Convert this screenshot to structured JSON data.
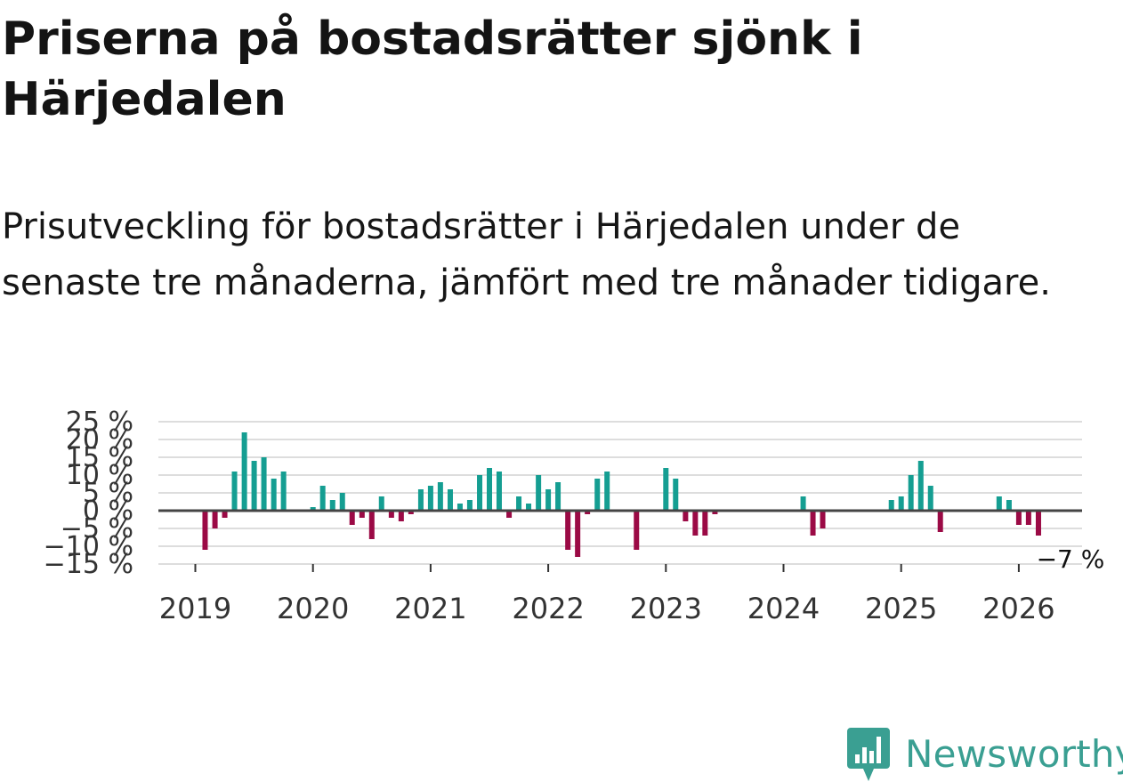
{
  "header": {
    "title": "Priserna på bostadsrätter sjönk i Härjedalen",
    "subtitle": "Prisutveckling för bostadsrätter i Härjedalen under de senaste tre månaderna, jämfört med tre månader tidigare."
  },
  "brand": {
    "name": "Newsworthy",
    "logo_icon": "newsworthy-bar-chart-icon",
    "color": "#3a9f92"
  },
  "chart_data": {
    "type": "bar",
    "title": "Priserna på bostadsrätter sjönk i Härjedalen",
    "subtitle": "Prisutveckling för bostadsrätter i Härjedalen under de senaste tre månaderna, jämfört med tre månader tidigare.",
    "xlabel": "",
    "ylabel": "",
    "unit": "%",
    "ylim": [
      -15,
      25
    ],
    "yticks": [
      -15,
      -10,
      -5,
      0,
      5,
      10,
      15,
      20,
      25
    ],
    "ytick_labels": [
      "−15 %",
      "−10 %",
      "−5 %",
      "0 %",
      "5 %",
      "10 %",
      "15 %",
      "20 %",
      "25 %"
    ],
    "xlim": [
      2019.0,
      2026.55
    ],
    "xticks": [
      2019,
      2020,
      2021,
      2022,
      2023,
      2024,
      2025,
      2026
    ],
    "xtick_labels": [
      "2019",
      "2020",
      "2021",
      "2022",
      "2023",
      "2024",
      "2025",
      "2026"
    ],
    "grid": true,
    "colors": {
      "positive": "#159e92",
      "negative": "#9b0a45",
      "zero_line": "#444444",
      "grid": "#dddddd"
    },
    "annotation": {
      "text": "−7 %",
      "x": 2026.167,
      "y": -7
    },
    "x": [
      2019.083,
      2019.167,
      2019.25,
      2019.333,
      2019.417,
      2019.5,
      2019.583,
      2019.667,
      2019.75,
      2020.0,
      2020.083,
      2020.167,
      2020.25,
      2020.333,
      2020.417,
      2020.5,
      2020.583,
      2020.667,
      2020.75,
      2020.833,
      2020.917,
      2021.0,
      2021.083,
      2021.167,
      2021.25,
      2021.333,
      2021.417,
      2021.5,
      2021.583,
      2021.667,
      2021.75,
      2021.833,
      2021.917,
      2022.0,
      2022.083,
      2022.167,
      2022.25,
      2022.333,
      2022.417,
      2022.5,
      2022.75,
      2023.0,
      2023.083,
      2023.167,
      2023.25,
      2023.333,
      2023.417,
      2024.167,
      2024.25,
      2024.333,
      2024.917,
      2025.0,
      2025.083,
      2025.167,
      2025.25,
      2025.333,
      2025.833,
      2025.917,
      2026.0,
      2026.083,
      2026.167
    ],
    "values": [
      -11,
      -5,
      -2,
      11,
      22,
      14,
      15,
      9,
      11,
      1,
      7,
      3,
      5,
      -4,
      -2,
      -8,
      4,
      -2,
      -3,
      -1,
      6,
      7,
      8,
      6,
      2,
      3,
      10,
      12,
      11,
      -2,
      4,
      2,
      10,
      6,
      8,
      -11,
      -13,
      -1,
      9,
      11,
      -11,
      12,
      9,
      -3,
      -7,
      -7,
      -1,
      4,
      -7,
      -5,
      3,
      4,
      10,
      14,
      7,
      -6,
      4,
      3,
      -4,
      -4,
      -7
    ]
  }
}
